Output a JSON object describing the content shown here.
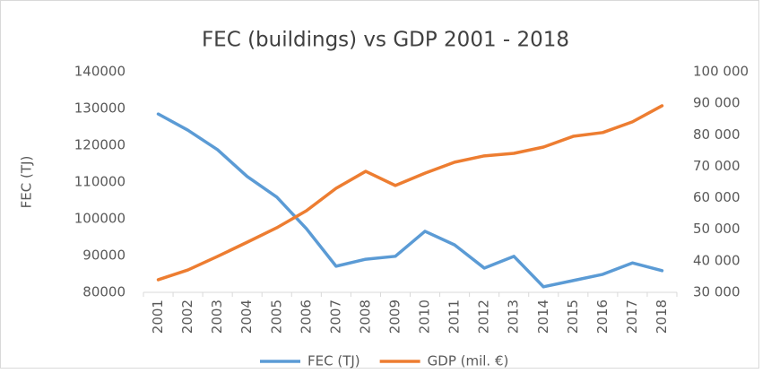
{
  "chart_data": {
    "type": "line",
    "title": "FEC (buildings) vs GDP 2001 - 2018",
    "y_label": "FEC (TJ)",
    "categories": [
      "2001",
      "2002",
      "2003",
      "2004",
      "2005",
      "2006",
      "2007",
      "2008",
      "2009",
      "2010",
      "2011",
      "2012",
      "2013",
      "2014",
      "2015",
      "2016",
      "2017",
      "2018"
    ],
    "series": [
      {
        "name": "FEC (TJ)",
        "color": "#5b9bd5",
        "axis": "y",
        "values": [
          128500,
          124100,
          118800,
          111500,
          105900,
          97300,
          87100,
          89000,
          89800,
          96600,
          92900,
          86600,
          89800,
          81500,
          83200,
          84900,
          88000,
          85900
        ]
      },
      {
        "name": "GDP (mil. €)",
        "color": "#ed7d31",
        "axis": "y2",
        "values": [
          34000,
          37100,
          41400,
          45900,
          50500,
          55900,
          63000,
          68400,
          63900,
          67800,
          71300,
          73300,
          74100,
          76100,
          79500,
          80700,
          84100,
          89200
        ]
      }
    ],
    "ylim": [
      80000,
      140000
    ],
    "yticks": [
      80000,
      90000,
      100000,
      110000,
      120000,
      130000,
      140000
    ],
    "y2lim": [
      30000,
      100000
    ],
    "y2ticks": [
      {
        "value": 30000,
        "label": "30 000"
      },
      {
        "value": 40000,
        "label": "40 000"
      },
      {
        "value": 50000,
        "label": "50 000"
      },
      {
        "value": 60000,
        "label": "60 000"
      },
      {
        "value": 70000,
        "label": "70 000"
      },
      {
        "value": 80000,
        "label": "80 000"
      },
      {
        "value": 90000,
        "label": "90 000"
      },
      {
        "value": 100000,
        "label": "100 000"
      }
    ],
    "legend": "bottom",
    "grid": false
  }
}
